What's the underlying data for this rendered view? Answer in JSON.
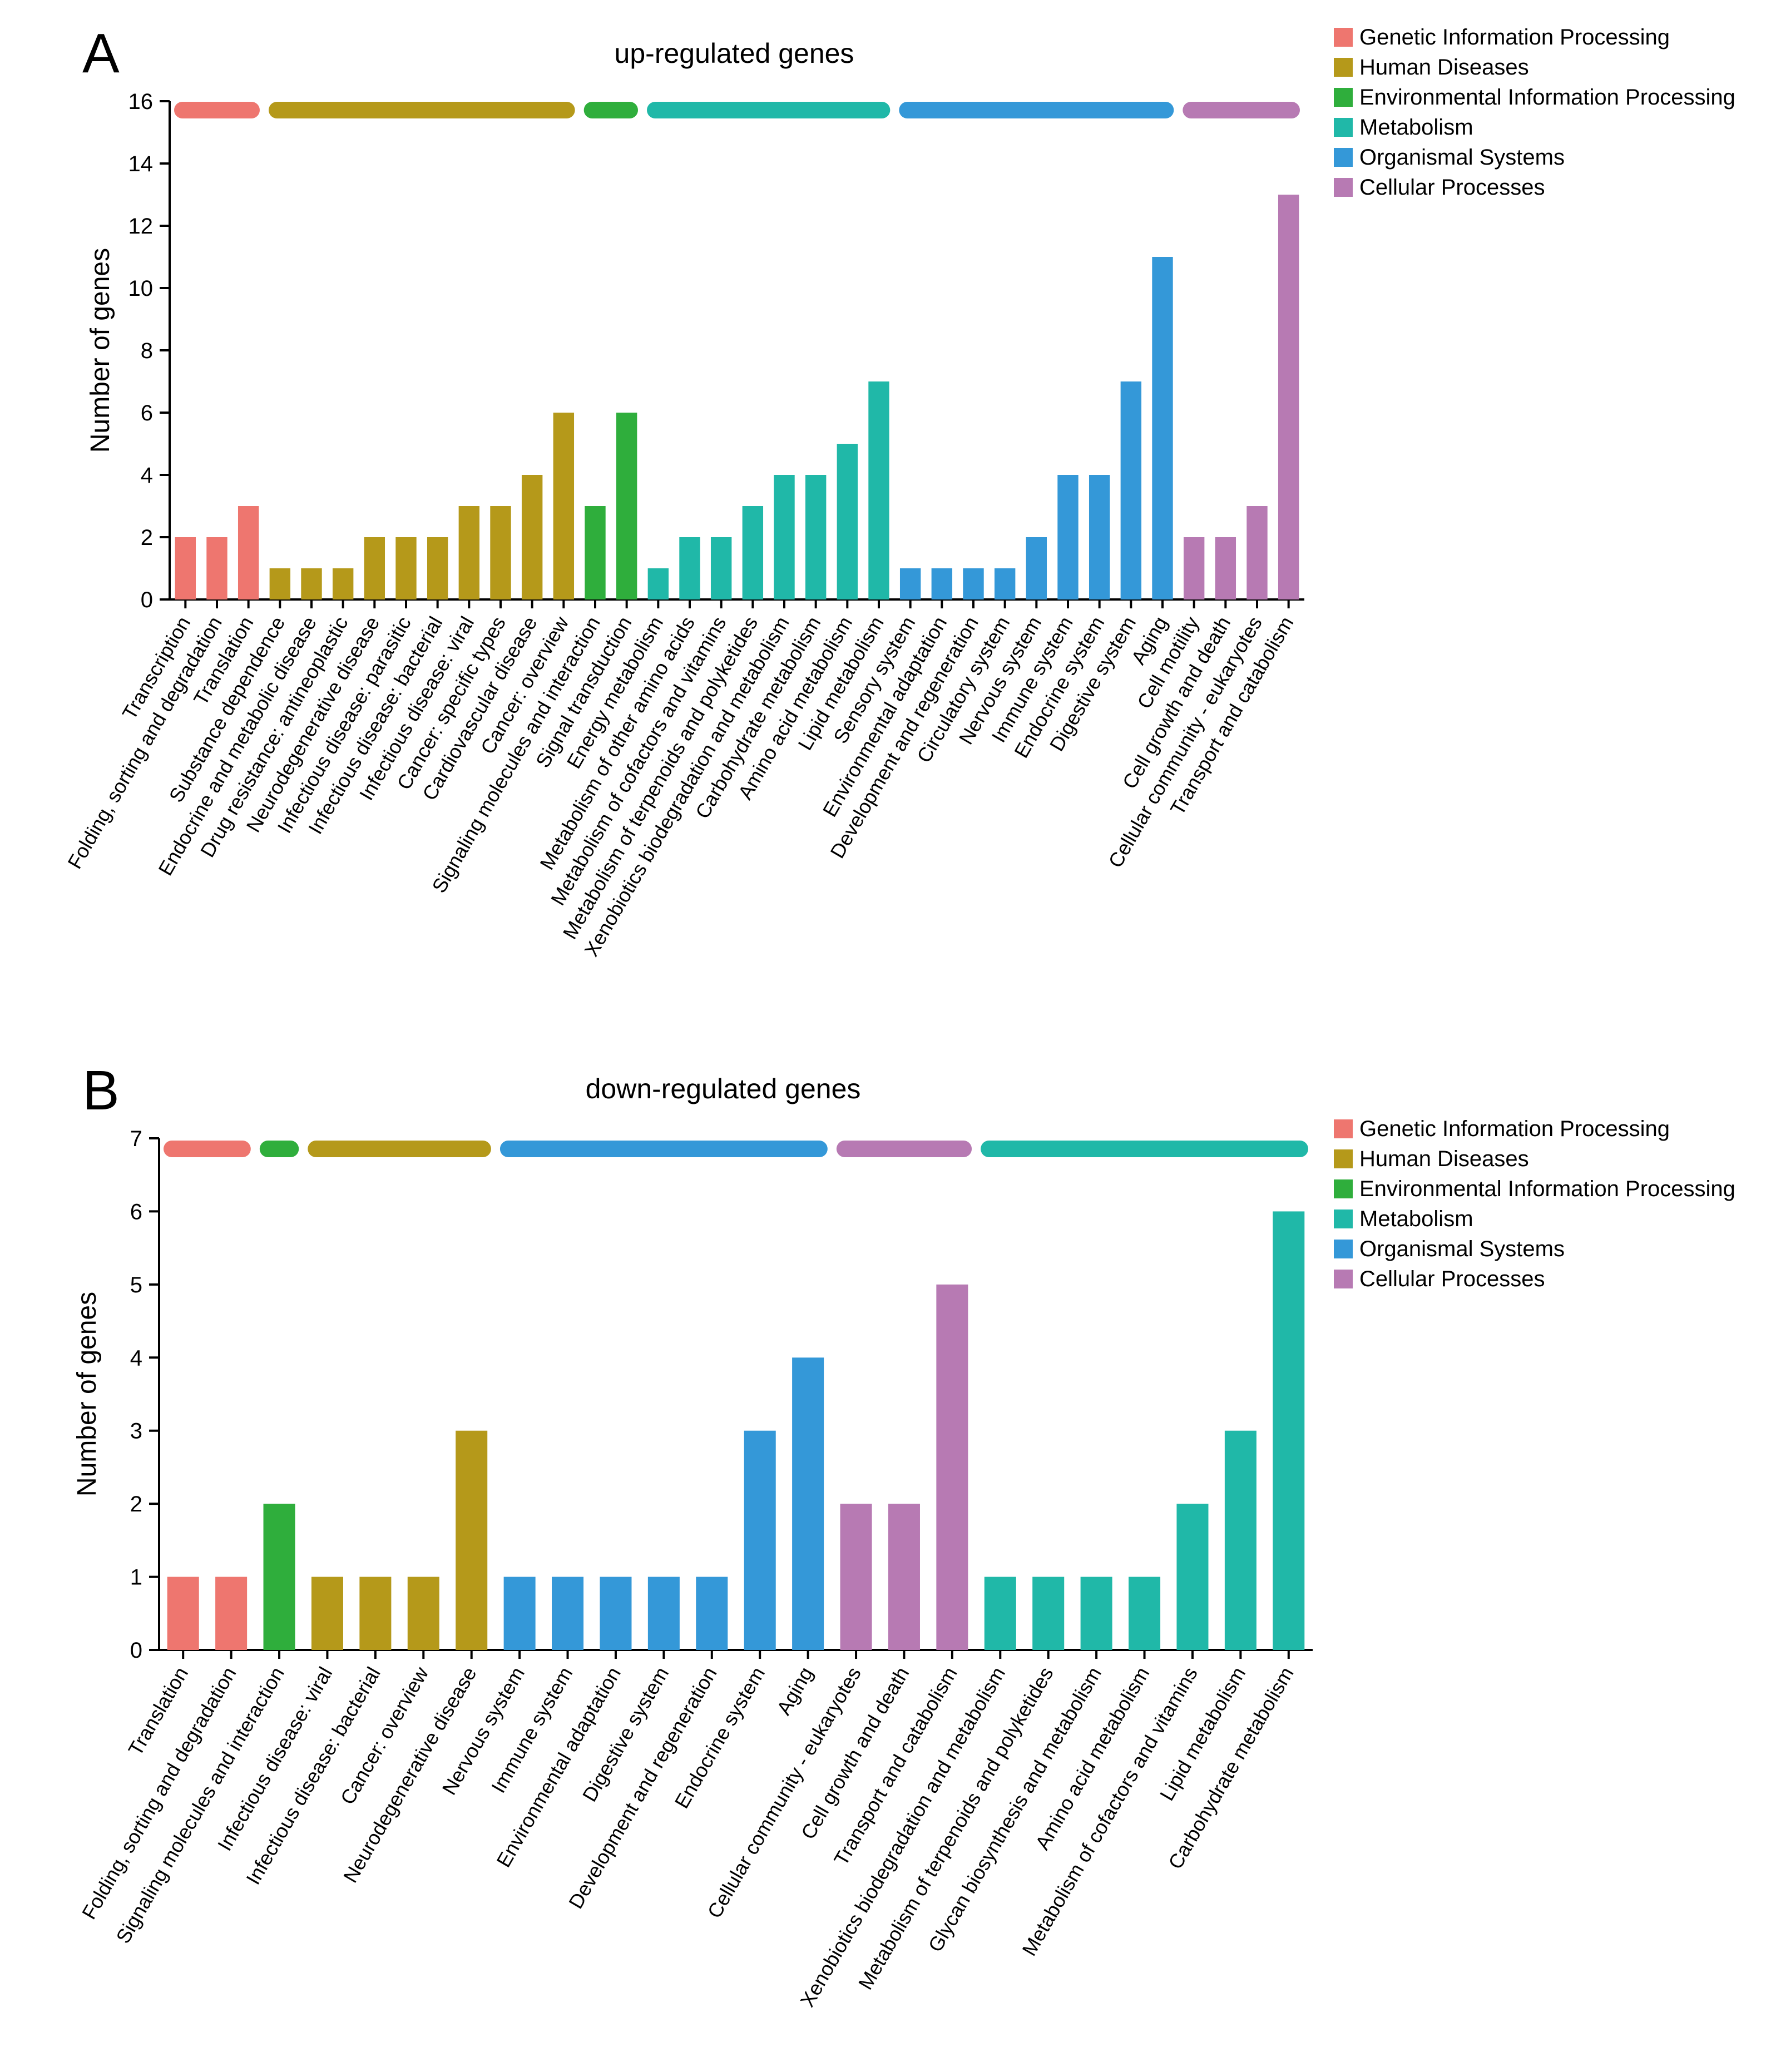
{
  "colors": {
    "Genetic Information Processing": "#ee766f",
    "Human Diseases": "#b5991a",
    "Environmental Information Processing": "#2fae3c",
    "Metabolism": "#20b8a8",
    "Organismal Systems": "#3498d8",
    "Cellular Processes": "#b77ab3"
  },
  "chart_data": [
    {
      "type": "bar",
      "panel": "A",
      "title": "up-regulated genes",
      "ylabel": "Number of genes",
      "xlabel": "",
      "ylim": [
        0,
        16
      ],
      "yticks": [
        0,
        2,
        4,
        6,
        8,
        10,
        12,
        14,
        16
      ],
      "legend": {
        "position": "top-right",
        "entries": [
          "Genetic Information Processing",
          "Human Diseases",
          "Environmental Information Processing",
          "Metabolism",
          "Organismal Systems",
          "Cellular Processes"
        ]
      },
      "category_groups": [
        {
          "name": "Genetic Information Processing",
          "categories": [
            "Transcription",
            "Folding, sorting and degradation",
            "Translation"
          ],
          "values": [
            2,
            2,
            3
          ]
        },
        {
          "name": "Human Diseases",
          "categories": [
            "Substance dependence",
            "Endocrine and metabolic disease",
            "Drug resistance: antineoplastic",
            "Neurodegenerative disease",
            "Infectious disease: parasitic",
            "Infectious disease: bacterial",
            "Infectious disease: viral",
            "Cancer: specific types",
            "Cardiovascular disease",
            "Cancer: overview"
          ],
          "values": [
            1,
            1,
            1,
            2,
            2,
            2,
            3,
            3,
            4,
            6
          ]
        },
        {
          "name": "Environmental Information Processing",
          "categories": [
            "Signaling molecules and interaction",
            "Signal transduction"
          ],
          "values": [
            3,
            6
          ]
        },
        {
          "name": "Metabolism",
          "categories": [
            "Energy metabolism",
            "Metabolism of other amino acids",
            "Metabolism of cofactors and vitamins",
            "Metabolism of terpenoids and polyketides",
            "Xenobiotics biodegradation and metabolism",
            "Carbohydrate metabolism",
            "Amino acid metabolism",
            "Lipid metabolism"
          ],
          "values": [
            1,
            2,
            2,
            3,
            4,
            4,
            5,
            7
          ]
        },
        {
          "name": "Organismal Systems",
          "categories": [
            "Sensory system",
            "Environmental adaptation",
            "Development and regeneration",
            "Circulatory system",
            "Nervous system",
            "Immune system",
            "Endocrine system",
            "Digestive system",
            "Aging"
          ],
          "values": [
            1,
            1,
            1,
            1,
            2,
            4,
            4,
            7,
            11
          ]
        },
        {
          "name": "Cellular Processes",
          "categories": [
            "Cell motility",
            "Cell growth and death",
            "Cellular community - eukaryotes",
            "Transport and catabolism"
          ],
          "values": [
            2,
            2,
            3,
            13
          ]
        }
      ]
    },
    {
      "type": "bar",
      "panel": "B",
      "title": "down-regulated genes",
      "ylabel": "Number of genes",
      "xlabel": "",
      "ylim": [
        0,
        7
      ],
      "yticks": [
        0,
        1,
        2,
        3,
        4,
        5,
        6,
        7
      ],
      "legend": {
        "position": "top-right",
        "entries": [
          "Genetic Information Processing",
          "Human Diseases",
          "Environmental Information Processing",
          "Metabolism",
          "Organismal Systems",
          "Cellular Processes"
        ]
      },
      "category_groups": [
        {
          "name": "Genetic Information Processing",
          "categories": [
            "Translation",
            "Folding, sorting and degradation"
          ],
          "values": [
            1,
            1
          ]
        },
        {
          "name": "Environmental Information Processing",
          "categories": [
            "Signaling molecules and interaction"
          ],
          "values": [
            2
          ]
        },
        {
          "name": "Human Diseases",
          "categories": [
            "Infectious disease: viral",
            "Infectious disease: bacterial",
            "Cancer: overview",
            "Neurodegenerative disease"
          ],
          "values": [
            1,
            1,
            1,
            3
          ]
        },
        {
          "name": "Organismal Systems",
          "categories": [
            "Nervous system",
            "Immune system",
            "Environmental adaptation",
            "Digestive system",
            "Development and regeneration",
            "Endocrine system",
            "Aging"
          ],
          "values": [
            1,
            1,
            1,
            1,
            1,
            3,
            4
          ]
        },
        {
          "name": "Cellular Processes",
          "categories": [
            "Cellular community - eukaryotes",
            "Cell growth and death",
            "Transport and catabolism"
          ],
          "values": [
            2,
            2,
            5
          ]
        },
        {
          "name": "Metabolism",
          "categories": [
            "Xenobiotics biodegradation and metabolism",
            "Metabolism of terpenoids and polyketides",
            "Glycan biosynthesis and metabolism",
            "Amino acid metabolism",
            "Metabolism of cofactors and vitamins",
            "Lipid metabolism",
            "Carbohydrate metabolism"
          ],
          "values": [
            1,
            1,
            1,
            1,
            2,
            3,
            6
          ]
        }
      ]
    }
  ]
}
